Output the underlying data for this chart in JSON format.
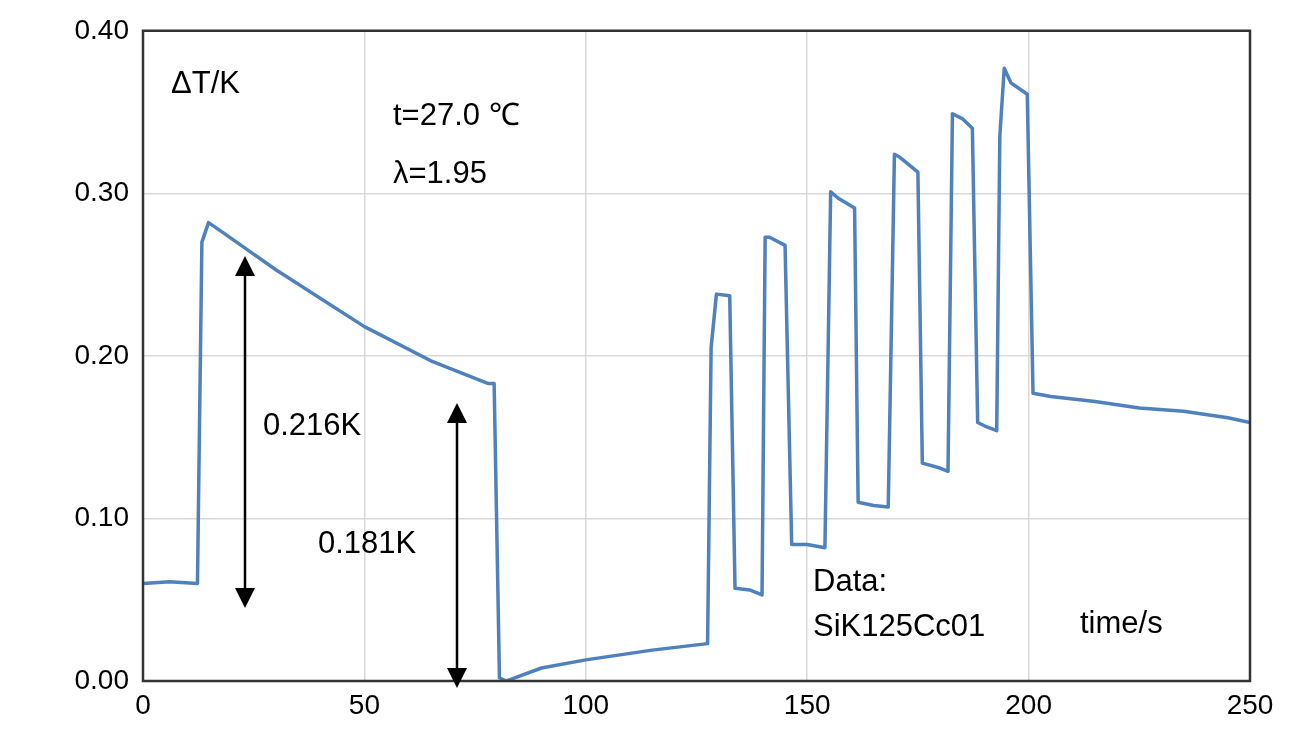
{
  "chart_data": {
    "type": "line",
    "xlabel": "time/s",
    "ylabel": "ΔT/K",
    "xlim": [
      0,
      250
    ],
    "xticks": [
      0,
      50,
      100,
      150,
      200,
      250
    ],
    "ylim": [
      0,
      0.4
    ],
    "yticks": [
      {
        "value": 0,
        "label": "0.00"
      },
      {
        "value": 0.1,
        "label": "0.10"
      },
      {
        "value": 0.2,
        "label": "0.20"
      },
      {
        "value": 0.3,
        "label": "0.30"
      },
      {
        "value": 0.4,
        "label": "0.40"
      }
    ],
    "grid": true,
    "legend": false,
    "marker": "none",
    "line_style": "solid",
    "series": [
      {
        "color": "#4f81bd",
        "x": [
          0,
          6,
          12.3,
          13.3,
          14.8,
          18,
          30,
          50,
          65,
          78,
          79.3,
          80.5,
          82,
          90,
          100,
          115,
          127.5,
          128.3,
          129.5,
          132.5,
          133.7,
          137,
          139.8,
          140.5,
          141.5,
          145,
          146.5,
          150,
          154,
          155.3,
          157,
          160.7,
          161.5,
          165,
          168.3,
          169.7,
          171,
          175,
          176,
          180,
          181.8,
          182.8,
          185,
          187.3,
          188.5,
          190,
          192.8,
          193.5,
          194.5,
          196,
          199.7,
          201,
          205,
          215,
          225,
          235,
          245,
          250
        ],
        "values": [
          0.06,
          0.061,
          0.06,
          0.27,
          0.282,
          0.276,
          0.253,
          0.218,
          0.197,
          0.183,
          0.183,
          0.002,
          0.0,
          0.008,
          0.013,
          0.019,
          0.023,
          0.205,
          0.238,
          0.237,
          0.057,
          0.056,
          0.053,
          0.273,
          0.273,
          0.268,
          0.084,
          0.084,
          0.082,
          0.301,
          0.297,
          0.291,
          0.11,
          0.108,
          0.107,
          0.324,
          0.322,
          0.313,
          0.134,
          0.131,
          0.129,
          0.349,
          0.346,
          0.34,
          0.159,
          0.157,
          0.154,
          0.335,
          0.377,
          0.368,
          0.361,
          0.177,
          0.175,
          0.172,
          0.168,
          0.166,
          0.162,
          0.159
        ]
      }
    ],
    "annotations": [
      "t=27.0 ℃",
      "λ=1.95",
      "Data:\nSiK125Cc01",
      "0.216K",
      "0.181K"
    ]
  }
}
